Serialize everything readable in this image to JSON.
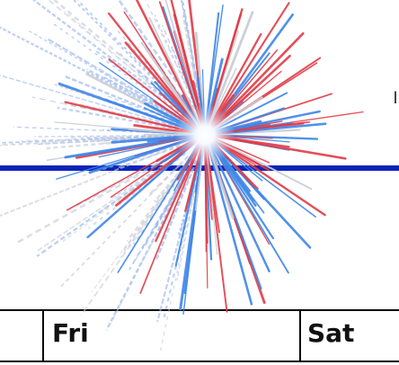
{
  "calendar": {
    "days": [
      {
        "label": "Fri"
      },
      {
        "label": "Sat"
      }
    ]
  },
  "decoration": {
    "rule_color": "#0a24b8",
    "firework_colors": [
      "#e23b46",
      "#3f86e8",
      "#c9cdd6",
      "#ffffff"
    ],
    "firework_icon": "firework-burst-icon"
  }
}
